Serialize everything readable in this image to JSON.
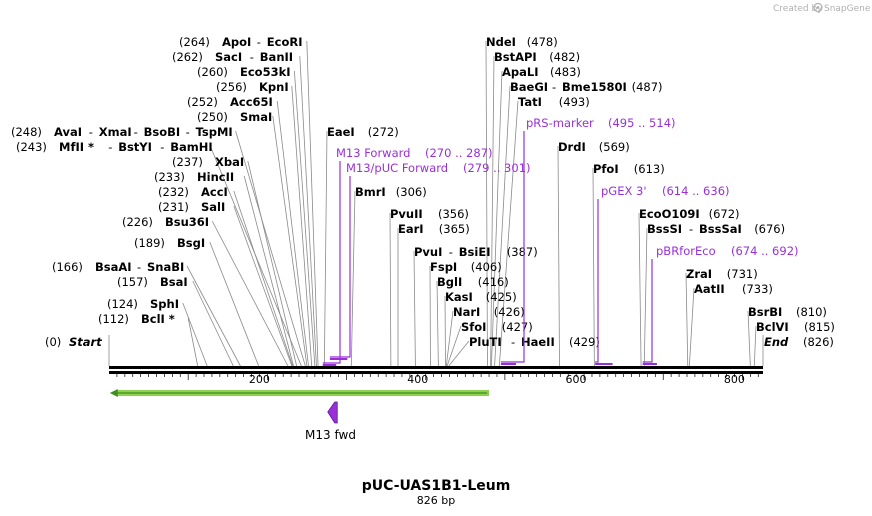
{
  "brand": {
    "created_by": "Created by",
    "app": "SnapGene"
  },
  "sequence": {
    "name": "pUC-UAS1B1-Leum",
    "length": 826,
    "length_label": "826 bp"
  },
  "axis_ticks": [
    {
      "pos": 200,
      "label": "200"
    },
    {
      "pos": 400,
      "label": "400"
    },
    {
      "pos": 600,
      "label": "600"
    },
    {
      "pos": 800,
      "label": "800"
    }
  ],
  "ends": [
    {
      "pos": 0,
      "label": "Start",
      "num": "(0)"
    },
    {
      "pos": 826,
      "label": "End",
      "num": "(826)"
    }
  ],
  "sites": [
    {
      "num": "(264)",
      "parts": [
        "ApoI",
        "EcoRI"
      ],
      "pos": 264
    },
    {
      "num": "(262)",
      "parts": [
        "SacI",
        "BanII"
      ],
      "pos": 262
    },
    {
      "num": "(260)",
      "parts": [
        "Eco53kI"
      ],
      "pos": 260
    },
    {
      "num": "(256)",
      "parts": [
        "KpnI"
      ],
      "pos": 256
    },
    {
      "num": "(252)",
      "parts": [
        "Acc65I"
      ],
      "pos": 252
    },
    {
      "num": "(250)",
      "parts": [
        "SmaI"
      ],
      "pos": 250
    },
    {
      "num": "(248)",
      "parts": [
        "AvaI",
        "XmaI",
        "BsoBI",
        "TspMI"
      ],
      "pos": 248
    },
    {
      "num": "(243)",
      "parts": [
        "MfII *",
        "BstYI",
        "BamHI"
      ],
      "pos": 243
    },
    {
      "num": "(237)",
      "parts": [
        "XbaI"
      ],
      "pos": 237
    },
    {
      "num": "(233)",
      "parts": [
        "HincII"
      ],
      "pos": 233
    },
    {
      "num": "(232)",
      "parts": [
        "AccI"
      ],
      "pos": 232
    },
    {
      "num": "(231)",
      "parts": [
        "SalI"
      ],
      "pos": 231
    },
    {
      "num": "(226)",
      "parts": [
        "Bsu36I"
      ],
      "pos": 226
    },
    {
      "num": "(189)",
      "parts": [
        "BsgI"
      ],
      "pos": 189
    },
    {
      "num": "(166)",
      "parts": [
        "BsaAI",
        "SnaBI"
      ],
      "pos": 166
    },
    {
      "num": "(157)",
      "parts": [
        "BsaI"
      ],
      "pos": 157
    },
    {
      "num": "(124)",
      "parts": [
        "SphI"
      ],
      "pos": 124
    },
    {
      "num": "(112)",
      "parts": [
        "BclI *"
      ],
      "pos": 112
    },
    {
      "num": "(272)",
      "parts": [
        "EaeI"
      ],
      "pos": 272
    },
    {
      "num": "(306)",
      "parts": [
        "BmrI"
      ],
      "pos": 306
    },
    {
      "num": "(356)",
      "parts": [
        "PvuII"
      ],
      "pos": 356
    },
    {
      "num": "(365)",
      "parts": [
        "EarI"
      ],
      "pos": 365
    },
    {
      "num": "(387)",
      "parts": [
        "PvuI",
        "BsiEI"
      ],
      "pos": 387
    },
    {
      "num": "(406)",
      "parts": [
        "FspI"
      ],
      "pos": 406
    },
    {
      "num": "(416)",
      "parts": [
        "BglI"
      ],
      "pos": 416
    },
    {
      "num": "(425)",
      "parts": [
        "KasI"
      ],
      "pos": 425
    },
    {
      "num": "(426)",
      "parts": [
        "NarI"
      ],
      "pos": 426
    },
    {
      "num": "(427)",
      "parts": [
        "SfoI"
      ],
      "pos": 427
    },
    {
      "num": "(429)",
      "parts": [
        "PluTI",
        "HaeII"
      ],
      "pos": 429
    },
    {
      "num": "(478)",
      "parts": [
        "NdeI"
      ],
      "pos": 478
    },
    {
      "num": "(482)",
      "parts": [
        "BstAPI"
      ],
      "pos": 482
    },
    {
      "num": "(483)",
      "parts": [
        "ApaLI"
      ],
      "pos": 483
    },
    {
      "num": "(487)",
      "parts": [
        "BaeGI",
        "Bme1580I"
      ],
      "pos": 487
    },
    {
      "num": "(493)",
      "parts": [
        "TatI"
      ],
      "pos": 493
    },
    {
      "num": "(569)",
      "parts": [
        "DrdI"
      ],
      "pos": 569
    },
    {
      "num": "(613)",
      "parts": [
        "PfoI"
      ],
      "pos": 613
    },
    {
      "num": "(672)",
      "parts": [
        "EcoO109I"
      ],
      "pos": 672
    },
    {
      "num": "(676)",
      "parts": [
        "BssSI",
        "BssSaI"
      ],
      "pos": 676
    },
    {
      "num": "(731)",
      "parts": [
        "ZraI"
      ],
      "pos": 731
    },
    {
      "num": "(733)",
      "parts": [
        "AatII"
      ],
      "pos": 733
    },
    {
      "num": "(810)",
      "parts": [
        "BsrBI"
      ],
      "pos": 810
    },
    {
      "num": "(815)",
      "parts": [
        "BclVI"
      ],
      "pos": 815
    }
  ],
  "primers": [
    {
      "name": "M13 Forward",
      "range": "(270 .. 287)",
      "start": 270,
      "end": 287
    },
    {
      "name": "M13/pUC Forward",
      "range": "(279 .. 301)",
      "start": 279,
      "end": 301
    },
    {
      "name": "pRS-marker",
      "range": "(495 .. 514)",
      "start": 495,
      "end": 514
    },
    {
      "name": "pGEX 3'",
      "range": "(614 .. 636)",
      "start": 614,
      "end": 636
    },
    {
      "name": "pBRforEco",
      "range": "(674 .. 692)",
      "start": 674,
      "end": 692
    }
  ],
  "features": [
    {
      "name": "M13 fwd",
      "type": "primer_bind",
      "direction": "reverse",
      "start": 270,
      "end": 287
    },
    {
      "name": "",
      "type": "ORF",
      "direction": "reverse",
      "start": 1,
      "end": 480
    }
  ],
  "colors": {
    "primer": "#9a2fd8",
    "orf": "#8fd14f",
    "orf_dark": "#3f8f1e",
    "feature": "#9a2fd8"
  }
}
